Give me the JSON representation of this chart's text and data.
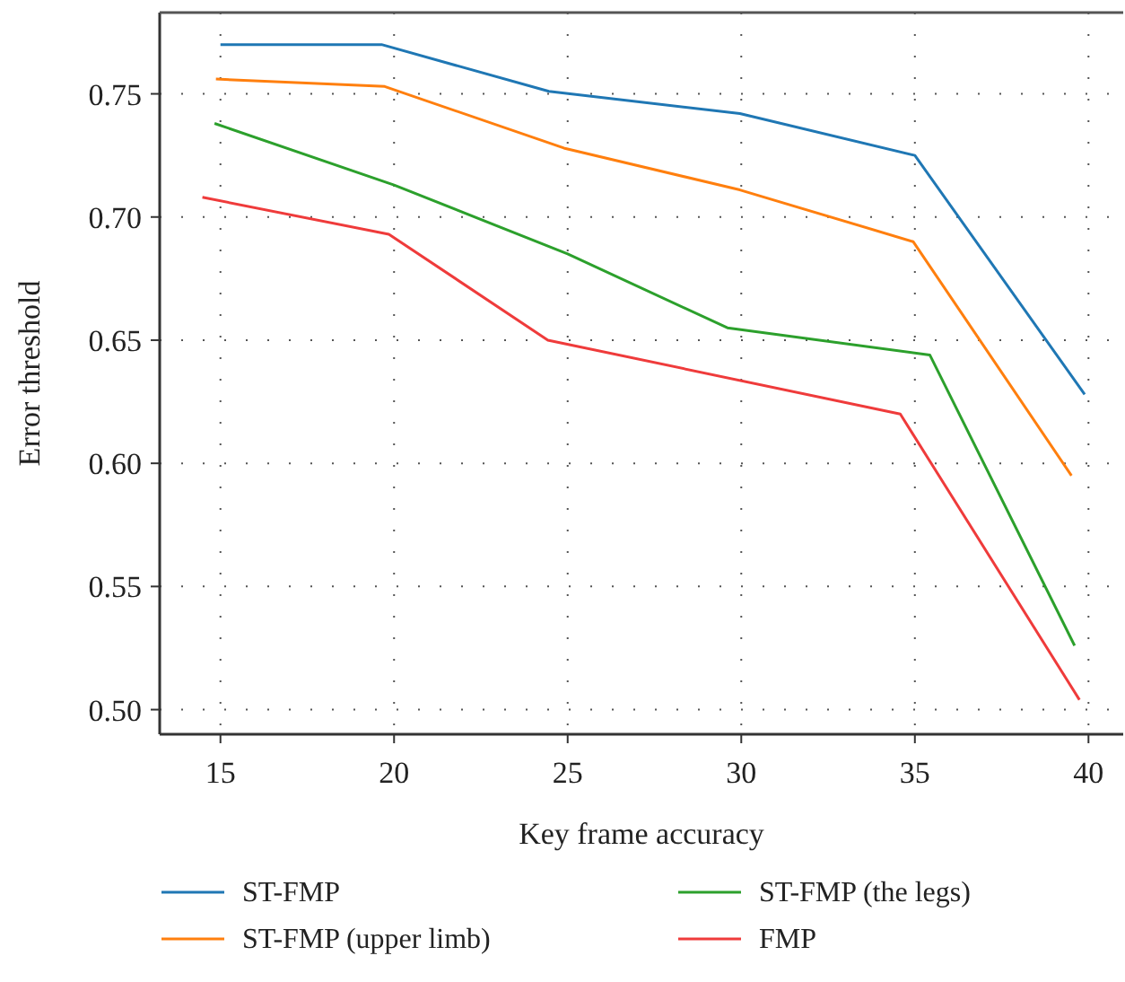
{
  "chart_data": {
    "type": "line",
    "xlabel": "Key frame accuracy",
    "ylabel": "Error threshold",
    "xlim": [
      13.25,
      41
    ],
    "ylim": [
      0.49,
      0.783
    ],
    "xticks": [
      15,
      20,
      25,
      30,
      35,
      40
    ],
    "yticks": [
      {
        "value": 0.5,
        "label": "0.50"
      },
      0.55,
      {
        "value": 0.6,
        "label": "0.60"
      },
      0.65,
      {
        "value": 0.7,
        "label": "0.70"
      },
      0.75
    ],
    "grid": true,
    "legend": "bottom",
    "marker": "none",
    "line_style": "solid",
    "series": [
      {
        "name": "ST-FMP",
        "color": "#1f77b4",
        "x": [
          15,
          19.64,
          24.46,
          29.96,
          35,
          39.89
        ],
        "values": [
          0.77,
          0.77,
          0.751,
          0.742,
          0.725,
          0.628
        ]
      },
      {
        "name": "ST-FMP (upper limb)",
        "color": "#ff7f0e",
        "x": [
          14.87,
          19.73,
          24.89,
          29.96,
          34.95,
          39.51
        ],
        "values": [
          0.756,
          0.753,
          0.728,
          0.711,
          0.69,
          0.595
        ]
      },
      {
        "name": "ST-FMP (the legs)",
        "color": "#2ca02c",
        "x": [
          14.83,
          20,
          25,
          29.6,
          35.43,
          39.6
        ],
        "values": [
          0.738,
          0.713,
          0.685,
          0.655,
          0.644,
          0.526
        ]
      },
      {
        "name": "FMP",
        "color": "#ef3b3b",
        "x": [
          14.48,
          19.85,
          24.43,
          34.58,
          39.74
        ],
        "values": [
          0.708,
          0.693,
          0.65,
          0.62,
          0.504
        ]
      }
    ]
  }
}
